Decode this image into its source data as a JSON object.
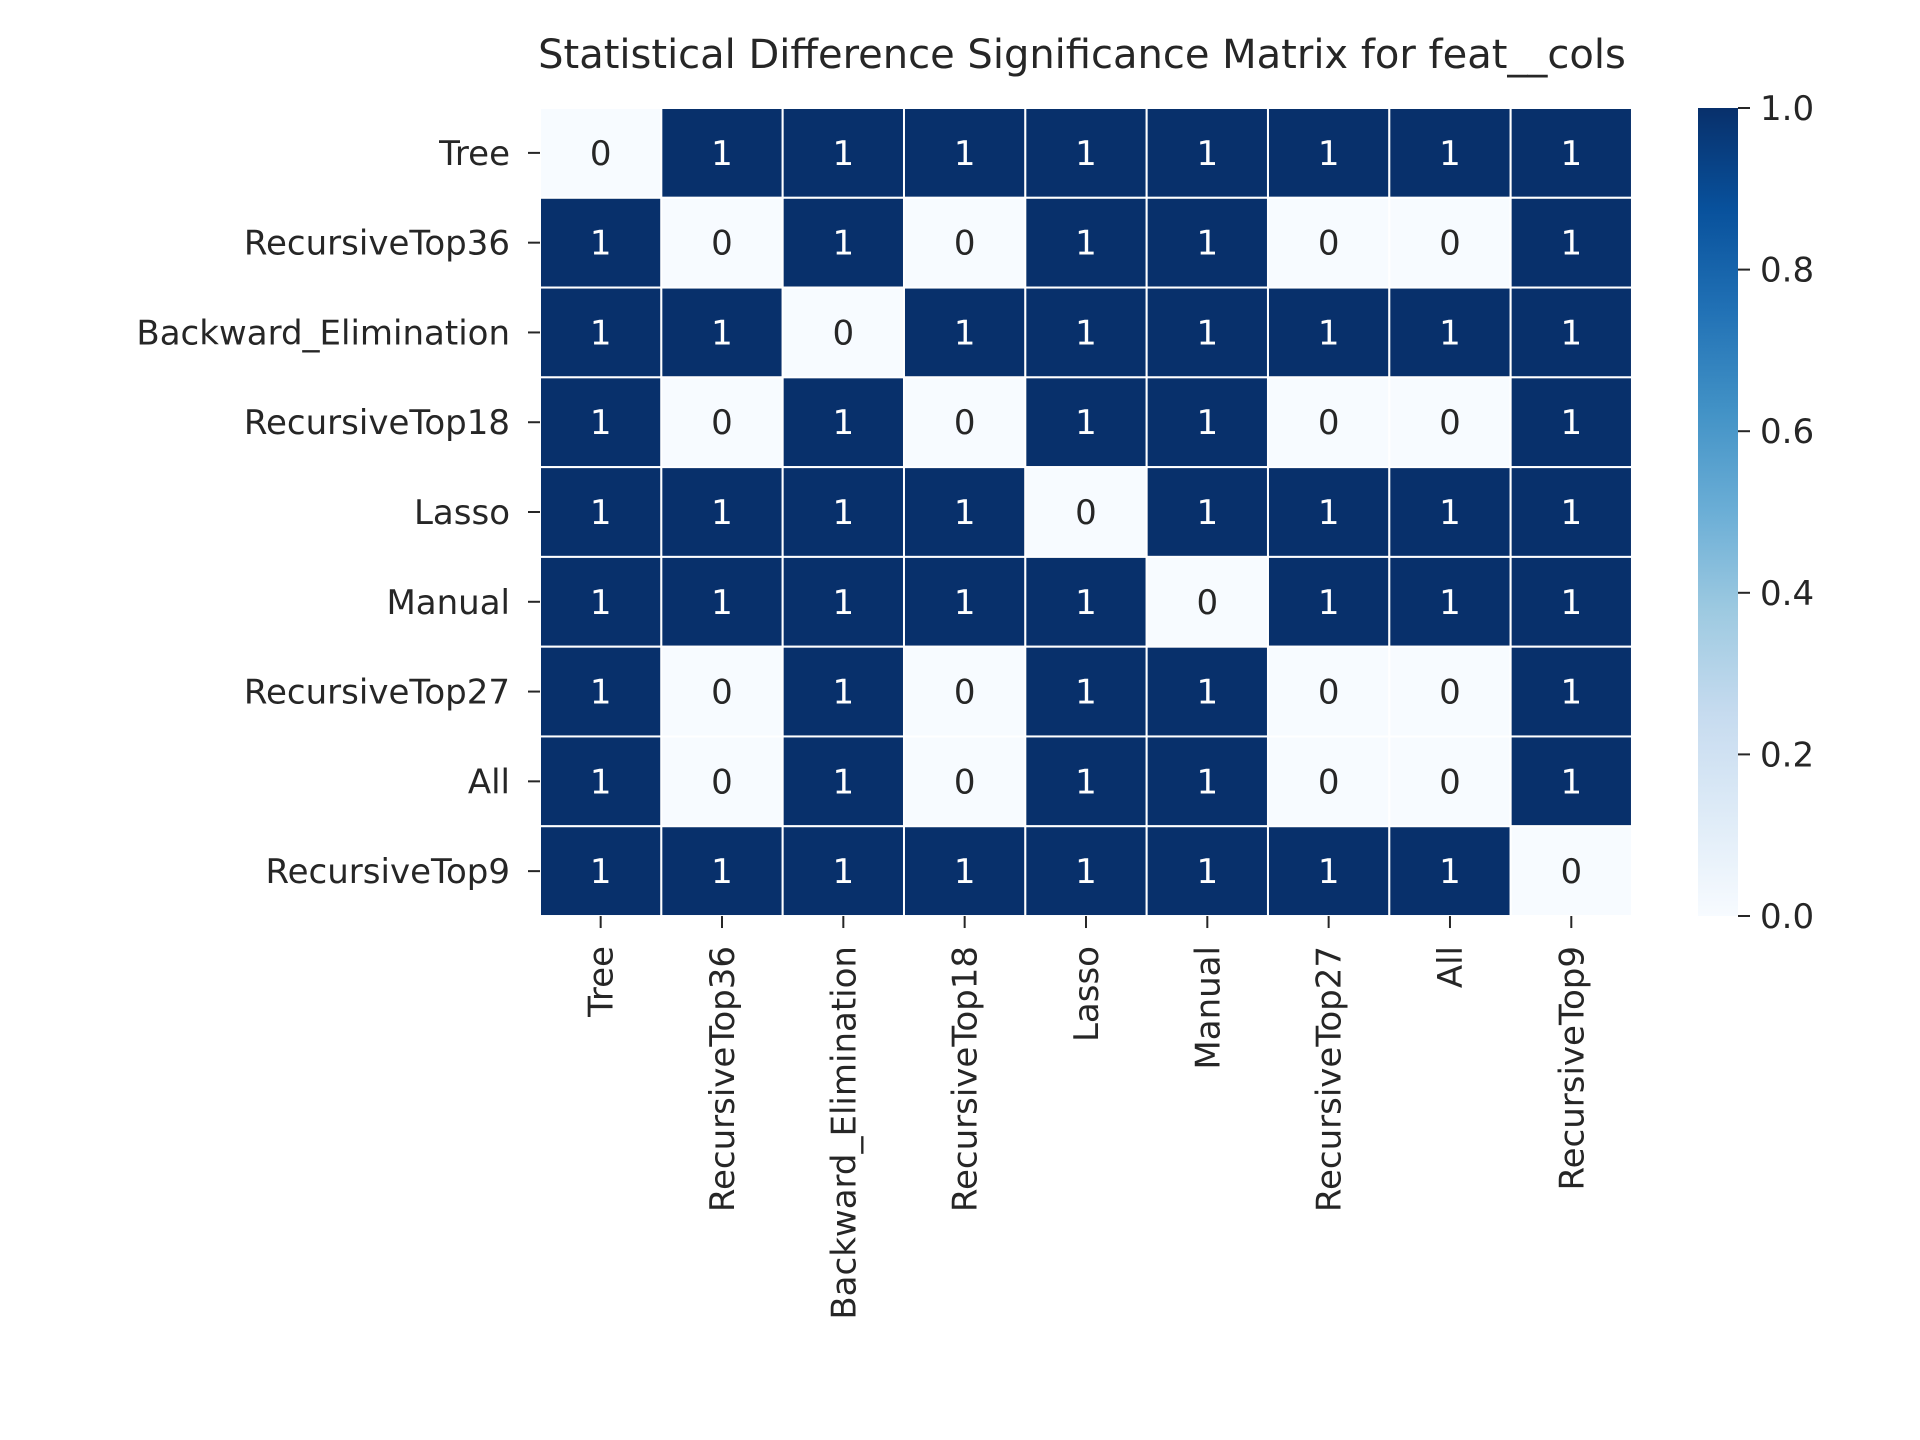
{
  "chart_data": {
    "type": "heatmap",
    "title": "Statistical Difference Significance Matrix for feat__cols",
    "row_labels": [
      "Tree",
      "RecursiveTop36",
      "Backward_Elimination",
      "RecursiveTop18",
      "Lasso",
      "Manual",
      "RecursiveTop27",
      "All",
      "RecursiveTop9"
    ],
    "col_labels": [
      "Tree",
      "RecursiveTop36",
      "Backward_Elimination",
      "RecursiveTop18",
      "Lasso",
      "Manual",
      "RecursiveTop27",
      "All",
      "RecursiveTop9"
    ],
    "values": [
      [
        0,
        1,
        1,
        1,
        1,
        1,
        1,
        1,
        1
      ],
      [
        1,
        0,
        1,
        0,
        1,
        1,
        0,
        0,
        1
      ],
      [
        1,
        1,
        0,
        1,
        1,
        1,
        1,
        1,
        1
      ],
      [
        1,
        0,
        1,
        0,
        1,
        1,
        0,
        0,
        1
      ],
      [
        1,
        1,
        1,
        1,
        0,
        1,
        1,
        1,
        1
      ],
      [
        1,
        1,
        1,
        1,
        1,
        0,
        1,
        1,
        1
      ],
      [
        1,
        0,
        1,
        0,
        1,
        1,
        0,
        0,
        1
      ],
      [
        1,
        0,
        1,
        0,
        1,
        1,
        0,
        0,
        1
      ],
      [
        1,
        1,
        1,
        1,
        1,
        1,
        1,
        1,
        0
      ]
    ],
    "annotations": true,
    "colorbar": {
      "colormap": "Blues",
      "vmin": 0.0,
      "vmax": 1.0,
      "ticks": [
        "0.0",
        "0.2",
        "0.4",
        "0.6",
        "0.8",
        "1.0"
      ]
    },
    "colors": {
      "low": "#f7fbff",
      "high": "#08306b",
      "grid": "#ffffff"
    },
    "xlabel": "",
    "ylabel": ""
  }
}
